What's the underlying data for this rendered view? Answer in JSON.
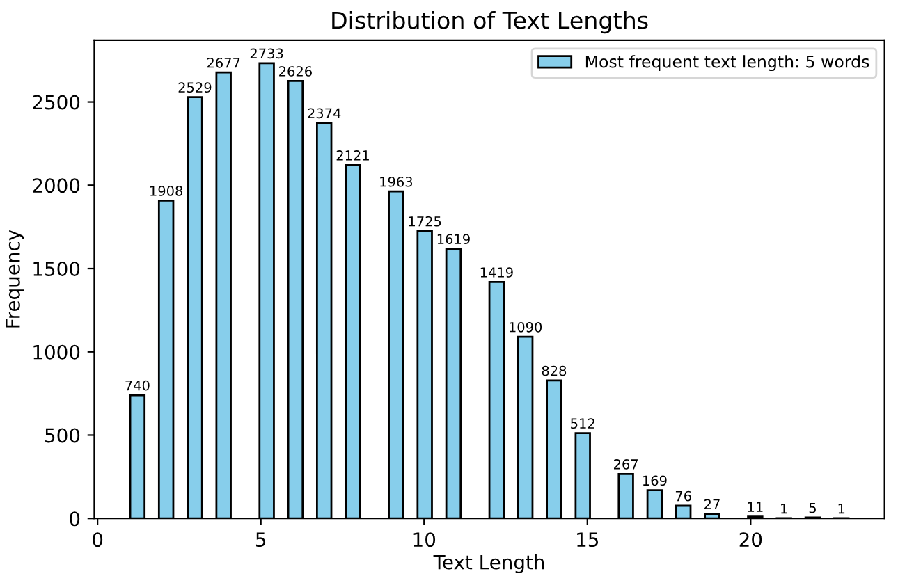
{
  "chart_data": {
    "type": "histogram",
    "title": "Distribution of Text Lengths",
    "xlabel": "Text Length",
    "ylabel": "Frequency",
    "bins": [
      1,
      1.44,
      1.88,
      2.32,
      2.76,
      3.2,
      3.64,
      4.08,
      4.52,
      4.96,
      5.4,
      5.84,
      6.28,
      6.72,
      7.16,
      7.6,
      8.04,
      8.48,
      8.92,
      9.36,
      9.8,
      10.24,
      10.68,
      11.12,
      11.56,
      12,
      12.44,
      12.88,
      13.32,
      13.76,
      14.2,
      14.64,
      15.08,
      15.52,
      15.96,
      16.4,
      16.84,
      17.28,
      17.72,
      18.16,
      18.6,
      19.04,
      19.48,
      19.92,
      20.36,
      20.8,
      21.24,
      21.68,
      22.12,
      22.56,
      23
    ],
    "series": [
      {
        "name": "Most frequent text length: 5 words",
        "color": "#87ceeb",
        "values": [
          740,
          0,
          1908,
          0,
          2529,
          0,
          2677,
          0,
          0,
          2733,
          0,
          2626,
          0,
          2374,
          0,
          2121,
          0,
          0,
          1963,
          0,
          1725,
          0,
          1619,
          0,
          0,
          1419,
          0,
          1090,
          0,
          828,
          0,
          512,
          0,
          0,
          267,
          0,
          169,
          0,
          76,
          0,
          27,
          0,
          0,
          11,
          0,
          1,
          0,
          5,
          0,
          1
        ],
        "value_labels": [
          "740",
          null,
          "1908",
          null,
          "2529",
          null,
          "2677",
          null,
          null,
          "2733",
          null,
          "2626",
          null,
          "2374",
          null,
          "2121",
          null,
          null,
          "1963",
          null,
          "1725",
          null,
          "1619",
          null,
          null,
          "1419",
          null,
          "1090",
          null,
          "828",
          null,
          "512",
          null,
          null,
          "267",
          null,
          "169",
          null,
          "76",
          null,
          "27",
          null,
          null,
          "11",
          null,
          "1",
          null,
          "5",
          null,
          "1"
        ]
      }
    ],
    "xlim": [
      -0.1,
      24.1
    ],
    "ylim": [
      0,
      2870
    ],
    "xticks": [
      0,
      5,
      10,
      15,
      20
    ],
    "yticks": [
      0,
      500,
      1000,
      1500,
      2000,
      2500
    ],
    "grid": false,
    "legend": "top right"
  }
}
